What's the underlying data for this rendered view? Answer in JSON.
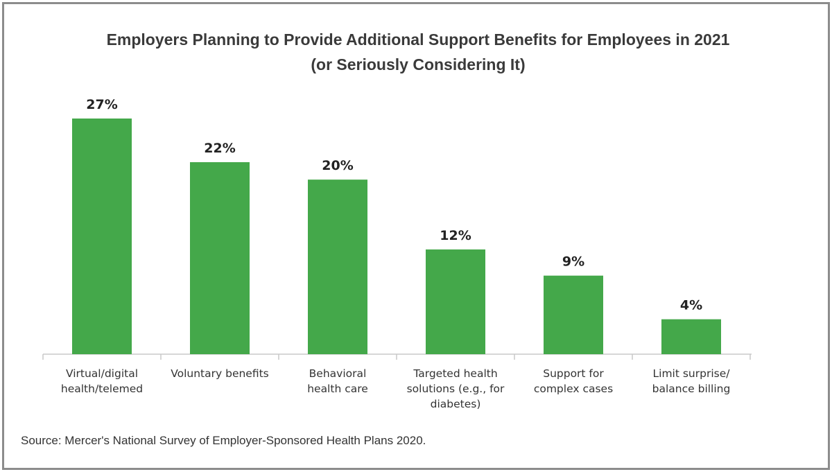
{
  "chart_data": {
    "type": "bar",
    "title": "Employers Planning to Provide Additional Support Benefits for Employees in 2021",
    "subtitle": "(or Seriously Considering It)",
    "categories": [
      [
        "Virtual/digital",
        "health/telemed"
      ],
      [
        "Voluntary benefits"
      ],
      [
        "Behavioral",
        "health care"
      ],
      [
        "Targeted health",
        "solutions (e.g., for",
        "diabetes)"
      ],
      [
        "Support for",
        "complex cases"
      ],
      [
        "Limit surprise/",
        "balance billing"
      ]
    ],
    "values": [
      27,
      22,
      20,
      12,
      9,
      4
    ],
    "value_labels": [
      "27%",
      "22%",
      "20%",
      "12%",
      "9%",
      "4%"
    ],
    "ylim": [
      0,
      27
    ],
    "grid": false,
    "bar_color": "#44a84a"
  },
  "source": "Source: Mercer's National Survey of Employer-Sponsored Health Plans 2020."
}
